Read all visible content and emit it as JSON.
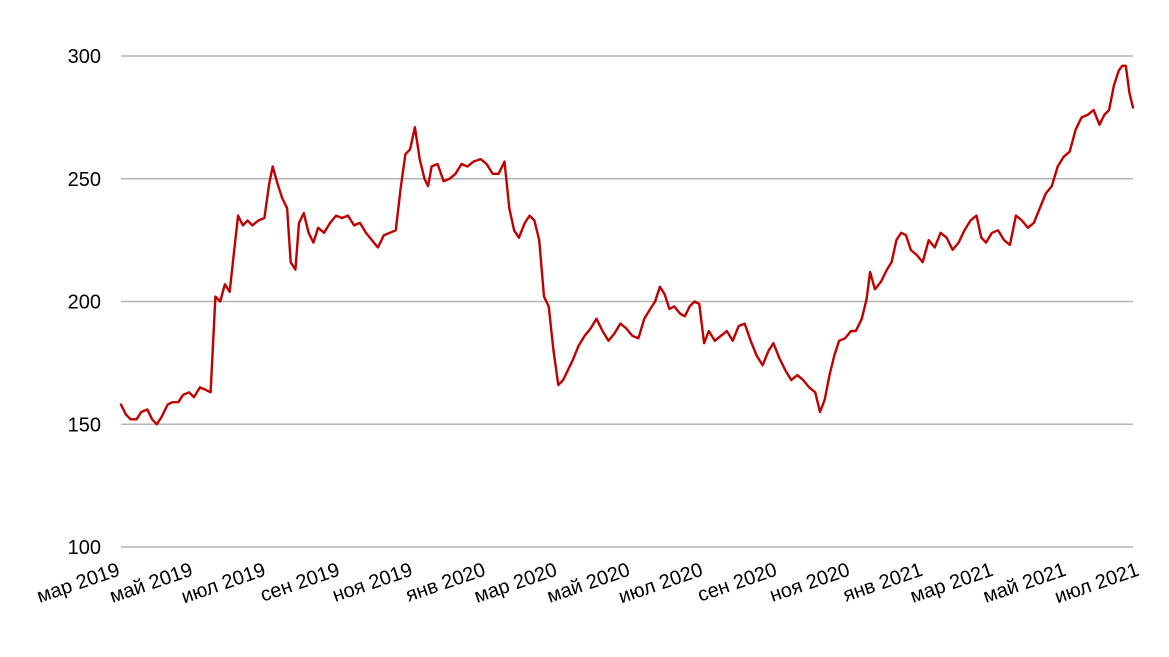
{
  "chart_data": {
    "type": "line",
    "title": "",
    "xlabel": "",
    "ylabel": "",
    "ylim": [
      100,
      300
    ],
    "yticks": [
      100,
      150,
      200,
      250,
      300
    ],
    "grid": true,
    "legend": "none",
    "colors": {
      "line": "#c00000",
      "grid": "#b3b3b3"
    },
    "x_ticks": [
      {
        "date": "2019-03-01",
        "label": "мар 2019"
      },
      {
        "date": "2019-05-01",
        "label": "май 2019"
      },
      {
        "date": "2019-07-01",
        "label": "июл 2019"
      },
      {
        "date": "2019-09-01",
        "label": "сен 2019"
      },
      {
        "date": "2019-11-01",
        "label": "ноя 2019"
      },
      {
        "date": "2020-01-01",
        "label": "янв 2020"
      },
      {
        "date": "2020-03-01",
        "label": "мар 2020"
      },
      {
        "date": "2020-05-01",
        "label": "май 2020"
      },
      {
        "date": "2020-07-01",
        "label": "июл 2020"
      },
      {
        "date": "2020-09-01",
        "label": "сен 2020"
      },
      {
        "date": "2020-11-01",
        "label": "ноя 2020"
      },
      {
        "date": "2021-01-01",
        "label": "янв 2021"
      },
      {
        "date": "2021-03-01",
        "label": "мар 2021"
      },
      {
        "date": "2021-05-01",
        "label": "май 2021"
      },
      {
        "date": "2021-07-01",
        "label": "июл 2021"
      }
    ],
    "series": [
      {
        "color": "#c00000",
        "points": [
          [
            "2019-03-01",
            158
          ],
          [
            "2019-03-05",
            154
          ],
          [
            "2019-03-09",
            152
          ],
          [
            "2019-03-14",
            152
          ],
          [
            "2019-03-18",
            155
          ],
          [
            "2019-03-23",
            156
          ],
          [
            "2019-03-27",
            152
          ],
          [
            "2019-03-31",
            150
          ],
          [
            "2019-04-04",
            153
          ],
          [
            "2019-04-09",
            158
          ],
          [
            "2019-04-13",
            159
          ],
          [
            "2019-04-18",
            159
          ],
          [
            "2019-04-22",
            162
          ],
          [
            "2019-04-27",
            163
          ],
          [
            "2019-05-01",
            161
          ],
          [
            "2019-05-06",
            165
          ],
          [
            "2019-05-11",
            164
          ],
          [
            "2019-05-15",
            163
          ],
          [
            "2019-05-19",
            202
          ],
          [
            "2019-05-23",
            200
          ],
          [
            "2019-05-27",
            207
          ],
          [
            "2019-05-31",
            204
          ],
          [
            "2019-06-04",
            222
          ],
          [
            "2019-06-07",
            235
          ],
          [
            "2019-06-11",
            231
          ],
          [
            "2019-06-15",
            233
          ],
          [
            "2019-06-19",
            231
          ],
          [
            "2019-06-24",
            233
          ],
          [
            "2019-06-29",
            234
          ],
          [
            "2019-07-03",
            248
          ],
          [
            "2019-07-06",
            255
          ],
          [
            "2019-07-10",
            248
          ],
          [
            "2019-07-14",
            242
          ],
          [
            "2019-07-18",
            238
          ],
          [
            "2019-07-21",
            216
          ],
          [
            "2019-07-25",
            213
          ],
          [
            "2019-07-28",
            232
          ],
          [
            "2019-08-01",
            236
          ],
          [
            "2019-08-05",
            228
          ],
          [
            "2019-08-09",
            224
          ],
          [
            "2019-08-13",
            230
          ],
          [
            "2019-08-18",
            228
          ],
          [
            "2019-08-23",
            232
          ],
          [
            "2019-08-28",
            235
          ],
          [
            "2019-09-02",
            234
          ],
          [
            "2019-09-07",
            235
          ],
          [
            "2019-09-12",
            231
          ],
          [
            "2019-09-17",
            232
          ],
          [
            "2019-09-22",
            228
          ],
          [
            "2019-09-27",
            225
          ],
          [
            "2019-10-02",
            222
          ],
          [
            "2019-10-07",
            227
          ],
          [
            "2019-10-12",
            228
          ],
          [
            "2019-10-17",
            229
          ],
          [
            "2019-10-21",
            246
          ],
          [
            "2019-10-25",
            260
          ],
          [
            "2019-10-29",
            262
          ],
          [
            "2019-11-02",
            271
          ],
          [
            "2019-11-06",
            258
          ],
          [
            "2019-11-10",
            250
          ],
          [
            "2019-11-13",
            247
          ],
          [
            "2019-11-16",
            255
          ],
          [
            "2019-11-21",
            256
          ],
          [
            "2019-11-26",
            249
          ],
          [
            "2019-12-01",
            250
          ],
          [
            "2019-12-06",
            252
          ],
          [
            "2019-12-11",
            256
          ],
          [
            "2019-12-16",
            255
          ],
          [
            "2019-12-21",
            257
          ],
          [
            "2019-12-27",
            258
          ],
          [
            "2020-01-01",
            256
          ],
          [
            "2020-01-06",
            252
          ],
          [
            "2020-01-11",
            252
          ],
          [
            "2020-01-16",
            257
          ],
          [
            "2020-01-20",
            238
          ],
          [
            "2020-01-24",
            229
          ],
          [
            "2020-01-28",
            226
          ],
          [
            "2020-02-02",
            232
          ],
          [
            "2020-02-06",
            235
          ],
          [
            "2020-02-10",
            233
          ],
          [
            "2020-02-14",
            225
          ],
          [
            "2020-02-18",
            202
          ],
          [
            "2020-02-22",
            198
          ],
          [
            "2020-02-26",
            180
          ],
          [
            "2020-03-01",
            166
          ],
          [
            "2020-03-05",
            168
          ],
          [
            "2020-03-09",
            172
          ],
          [
            "2020-03-13",
            176
          ],
          [
            "2020-03-18",
            182
          ],
          [
            "2020-03-23",
            186
          ],
          [
            "2020-03-28",
            189
          ],
          [
            "2020-04-02",
            193
          ],
          [
            "2020-04-07",
            188
          ],
          [
            "2020-04-12",
            184
          ],
          [
            "2020-04-17",
            187
          ],
          [
            "2020-04-22",
            191
          ],
          [
            "2020-04-27",
            189
          ],
          [
            "2020-05-02",
            186
          ],
          [
            "2020-05-07",
            185
          ],
          [
            "2020-05-12",
            193
          ],
          [
            "2020-05-17",
            197
          ],
          [
            "2020-05-21",
            200
          ],
          [
            "2020-05-25",
            206
          ],
          [
            "2020-05-29",
            203
          ],
          [
            "2020-06-02",
            197
          ],
          [
            "2020-06-06",
            198
          ],
          [
            "2020-06-11",
            195
          ],
          [
            "2020-06-15",
            194
          ],
          [
            "2020-06-19",
            198
          ],
          [
            "2020-06-23",
            200
          ],
          [
            "2020-06-27",
            199
          ],
          [
            "2020-07-01",
            183
          ],
          [
            "2020-07-05",
            188
          ],
          [
            "2020-07-10",
            184
          ],
          [
            "2020-07-15",
            186
          ],
          [
            "2020-07-20",
            188
          ],
          [
            "2020-07-25",
            184
          ],
          [
            "2020-07-30",
            190
          ],
          [
            "2020-08-04",
            191
          ],
          [
            "2020-08-09",
            184
          ],
          [
            "2020-08-14",
            178
          ],
          [
            "2020-08-19",
            174
          ],
          [
            "2020-08-24",
            180
          ],
          [
            "2020-08-28",
            183
          ],
          [
            "2020-09-02",
            177
          ],
          [
            "2020-09-07",
            172
          ],
          [
            "2020-09-12",
            168
          ],
          [
            "2020-09-17",
            170
          ],
          [
            "2020-09-22",
            168
          ],
          [
            "2020-09-27",
            165
          ],
          [
            "2020-10-02",
            163
          ],
          [
            "2020-10-06",
            155
          ],
          [
            "2020-10-10",
            160
          ],
          [
            "2020-10-14",
            170
          ],
          [
            "2020-10-18",
            178
          ],
          [
            "2020-10-22",
            184
          ],
          [
            "2020-10-27",
            185
          ],
          [
            "2020-11-01",
            188
          ],
          [
            "2020-11-05",
            188
          ],
          [
            "2020-11-10",
            193
          ],
          [
            "2020-11-14",
            201
          ],
          [
            "2020-11-17",
            212
          ],
          [
            "2020-11-21",
            205
          ],
          [
            "2020-11-26",
            208
          ],
          [
            "2020-12-01",
            213
          ],
          [
            "2020-12-05",
            216
          ],
          [
            "2020-12-09",
            225
          ],
          [
            "2020-12-13",
            228
          ],
          [
            "2020-12-17",
            227
          ],
          [
            "2020-12-21",
            221
          ],
          [
            "2020-12-26",
            219
          ],
          [
            "2020-12-31",
            216
          ],
          [
            "2021-01-05",
            225
          ],
          [
            "2021-01-10",
            222
          ],
          [
            "2021-01-15",
            228
          ],
          [
            "2021-01-20",
            226
          ],
          [
            "2021-01-25",
            221
          ],
          [
            "2021-01-30",
            224
          ],
          [
            "2021-02-04",
            229
          ],
          [
            "2021-02-09",
            233
          ],
          [
            "2021-02-14",
            235
          ],
          [
            "2021-02-18",
            226
          ],
          [
            "2021-02-22",
            224
          ],
          [
            "2021-02-27",
            228
          ],
          [
            "2021-03-04",
            229
          ],
          [
            "2021-03-09",
            225
          ],
          [
            "2021-03-14",
            223
          ],
          [
            "2021-03-19",
            235
          ],
          [
            "2021-03-24",
            233
          ],
          [
            "2021-03-29",
            230
          ],
          [
            "2021-04-03",
            232
          ],
          [
            "2021-04-08",
            238
          ],
          [
            "2021-04-13",
            244
          ],
          [
            "2021-04-18",
            247
          ],
          [
            "2021-04-23",
            255
          ],
          [
            "2021-04-28",
            259
          ],
          [
            "2021-05-03",
            261
          ],
          [
            "2021-05-08",
            270
          ],
          [
            "2021-05-13",
            275
          ],
          [
            "2021-05-18",
            276
          ],
          [
            "2021-05-23",
            278
          ],
          [
            "2021-05-28",
            272
          ],
          [
            "2021-06-01",
            276
          ],
          [
            "2021-06-05",
            278
          ],
          [
            "2021-06-09",
            288
          ],
          [
            "2021-06-13",
            294
          ],
          [
            "2021-06-16",
            296
          ],
          [
            "2021-06-19",
            296
          ],
          [
            "2021-06-22",
            285
          ],
          [
            "2021-06-25",
            279
          ]
        ]
      }
    ]
  }
}
